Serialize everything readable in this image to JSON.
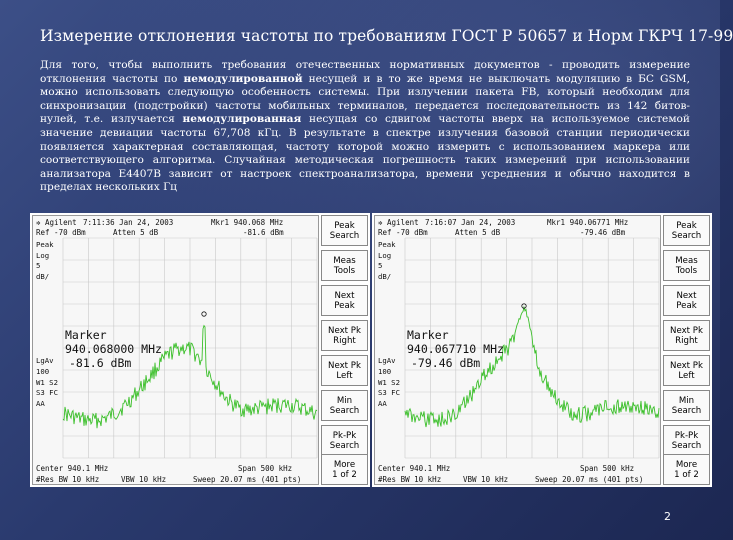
{
  "slide": {
    "title": "Измерение отклонения частоты по требованиям ГОСТ Р 50657 и Норм ГКРЧ 17-99",
    "body": {
      "t1": "Для того, чтобы выполнить требования отечественных нормативных документов - проводить измерение отклонения частоты по ",
      "b1": "немодулированной",
      "t2": " несущей и в то же время не выключать модуляцию в БС GSM, можно использовать следующую особенность системы. При излучении пакета FB, который необходим для синхронизации (подстройки) частоты мобильных терминалов, передается последовательность из 142 битов-нулей, т.е. излучается ",
      "b2": "немодулированная",
      "t3": " несущая со сдвигом частоты вверх на используемое системой значение девиации частоты 67,708 кГц. В результате в спектре излучения базовой станции периодически появляется характерная составляющая, частоту которой можно измерить с использованием маркера или соответствующего алгоритма. Случайная методическая погрешность таких измерений при использовании анализатора Е4407В зависит от настроек спектроанализатора, времени усреднения и обычно находится в пределах нескольких  Гц"
    },
    "page_number": "2"
  },
  "analyzer_left": {
    "brand": "Agilent",
    "datetime": "7:11:36  Jan 24, 2003",
    "marker_readout_freq": "Mkr1  940.068  MHz",
    "ref": "Ref -70 dBm",
    "atten": "Atten 5 dB",
    "marker_readout_level": "-81.6 dBm",
    "left_labels": [
      "Peak",
      "Log",
      "5",
      "dB/",
      "",
      "",
      "",
      "",
      "",
      "",
      "",
      "LgAv",
      "100",
      "W1 S2",
      "S3 FC",
      "AA"
    ],
    "marker_label": "Marker",
    "marker_freq": "940.068000 MHz",
    "marker_level": "-81.6 dBm",
    "footer_center": "Center 940.1 MHz",
    "footer_span": "Span 500 kHz",
    "footer_res": "#Res BW 10 kHz",
    "footer_vbw": "VBW 10 kHz",
    "footer_sweep": "Sweep 20.07 ms (401 pts)",
    "buttons": [
      "Peak Search",
      "Meas Tools",
      "Next Peak",
      "Next Pk Right",
      "Next Pk Left",
      "Min Search",
      "Pk-Pk Search",
      "More\n1 of 2"
    ],
    "trace_color": "#3bbf2a"
  },
  "analyzer_right": {
    "brand": "Agilent",
    "datetime": "7:16:07  Jan 24, 2003",
    "marker_readout_freq": "Mkr1  940.06771  MHz",
    "ref": "Ref -70 dBm",
    "atten": "Atten 5 dB",
    "marker_readout_level": "-79.46 dBm",
    "left_labels": [
      "Peak",
      "Log",
      "5",
      "dB/",
      "",
      "",
      "",
      "",
      "",
      "",
      "",
      "LgAv",
      "100",
      "W1 S2",
      "S3 FC",
      "AA"
    ],
    "marker_label": "Marker",
    "marker_freq": "940.067710 MHz",
    "marker_level": "-79.46 dBm",
    "footer_center": "Center 940.1 MHz",
    "footer_span": "Span 500 kHz",
    "footer_res": "#Res BW 10 kHz",
    "footer_vbw": "VBW 10 kHz",
    "footer_sweep": "Sweep 20.07 ms (401 pts)",
    "buttons": [
      "Peak Search",
      "Meas Tools",
      "Next Peak",
      "Next Pk Right",
      "Next Pk Left",
      "Min Search",
      "Pk-Pk Search",
      "More\n1 of 2"
    ],
    "trace_color": "#3bbf2a"
  }
}
